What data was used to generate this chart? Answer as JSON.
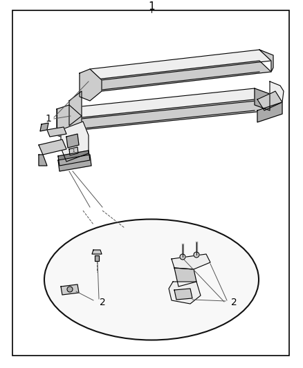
{
  "background_color": "#ffffff",
  "border_color": "#000000",
  "label_1_top": "1",
  "label_1_side": "1",
  "label_2_left": "2",
  "label_2_right": "2",
  "figsize": [
    4.38,
    5.33
  ],
  "dpi": 100,
  "line_color": "#000000",
  "fill_light": "#eeeeee",
  "fill_mid": "#cccccc",
  "fill_dark": "#aaaaaa",
  "fill_darker": "#888888"
}
